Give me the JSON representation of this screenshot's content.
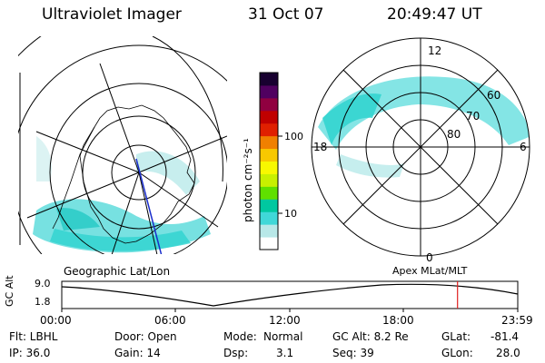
{
  "header": {
    "instrument": "Ultraviolet Imager",
    "date": "31 Oct 07",
    "time": "20:49:47 UT"
  },
  "colorbar": {
    "label": "photon cm⁻²s⁻¹",
    "ticks": [
      "100",
      "10"
    ],
    "colors": [
      "#ffffff",
      "#b8e8e8",
      "#40d8d8",
      "#00c8a0",
      "#60e000",
      "#c8f000",
      "#f8f800",
      "#f8c800",
      "#f08000",
      "#e02000",
      "#c00000",
      "#900040",
      "#500060",
      "#180030"
    ]
  },
  "polar_plot": {
    "mlt_labels": {
      "top": "12",
      "left": "18",
      "right": "6",
      "bottom": "0"
    },
    "lat_labels": [
      "60",
      "70",
      "80"
    ]
  },
  "geo_plot": {
    "caption": "Geographic Lat/Lon"
  },
  "apex_caption": "Apex  MLat/MLT",
  "orbit_plot": {
    "ylabel": "GC Alt",
    "ymax": "9.0",
    "ymin": "1.8",
    "xticks": [
      "00:00",
      "06:00",
      "12:00",
      "18:00",
      "23:59"
    ],
    "current_marker_hours": 20.83,
    "marker_color": "#e02020"
  },
  "info": {
    "flt": "Flt: LBHL",
    "ip": "IP: 36.0",
    "door": "Door: Open",
    "gain": "Gain: 14",
    "mode_label": "Mode:",
    "mode_value": "Normal",
    "dsp_label": "Dsp:",
    "dsp_value": "3.1",
    "gcalt": "GC Alt: 8.2 Re",
    "seq": "Seq: 39",
    "glat_label": "GLat:",
    "glat_value": "-81.4",
    "glon_label": "GLon:",
    "glon_value": "28.0"
  }
}
